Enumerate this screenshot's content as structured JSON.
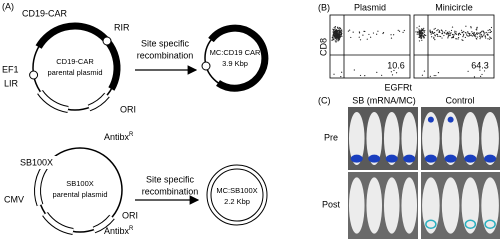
{
  "panel_a": {
    "label": "(A)",
    "top": {
      "insert": "CD19-CAR",
      "rir": "RIR",
      "promoter": "EF1",
      "lir": "LIR",
      "plasmid_lines": [
        "CD19-CAR",
        "parental plasmid"
      ],
      "step_lines": [
        "Site specific",
        "recombination"
      ],
      "mc_lines": [
        "MC:CD19 CAR",
        "3.9 Kbp"
      ],
      "ori": "ORI",
      "antibx": {
        "text": "Antibx",
        "superscript": "R"
      }
    },
    "bottom": {
      "insert": "SB100X",
      "promoter": "CMV",
      "plasmid_lines": [
        "SB100X",
        "parental plasmid"
      ],
      "step_lines": [
        "Site specific",
        "recombination"
      ],
      "mc_lines": [
        "MC:SB100X",
        "2.2 Kbp"
      ],
      "ori": "ORI",
      "antibx": {
        "text": "Antibx",
        "superscript": "R"
      }
    }
  },
  "panel_b": {
    "label": "(B)",
    "columns": [
      "Plasmid",
      "Minicircle"
    ],
    "y_axis": "CD8",
    "x_axis": "EGFRt",
    "percentages": [
      "10.6",
      "64.3"
    ]
  },
  "panel_c": {
    "label": "(C)",
    "columns": [
      "SB (mRNA/MC)",
      "Control"
    ],
    "rows": [
      "Pre",
      "Post"
    ]
  }
}
